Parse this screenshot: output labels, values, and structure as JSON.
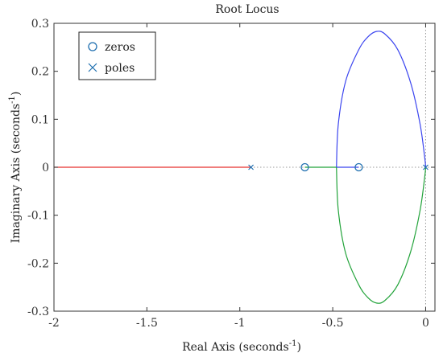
{
  "chart_data": {
    "type": "line",
    "title": "Root Locus",
    "xlabel": "Real Axis (seconds",
    "ylabel": "Imaginary Axis (seconds",
    "axis_unit_exponent": "-1",
    "xlim": [
      -2,
      0.05
    ],
    "ylim": [
      -0.3,
      0.3
    ],
    "x_ticks": [
      -2,
      -1.5,
      -1,
      -0.5,
      0
    ],
    "x_tick_labels": [
      "-2",
      "-1.5",
      "-1",
      "-0.5",
      "0"
    ],
    "y_ticks": [
      0.3,
      0.2,
      0.1,
      0,
      -0.1,
      -0.2,
      -0.3
    ],
    "y_tick_labels": [
      "0.3",
      "0.2",
      "0.1",
      "0",
      "-0.1",
      "-0.2",
      "-0.3"
    ],
    "grid": false,
    "legend_placement": "top-left",
    "legend": [
      {
        "label": "zeros",
        "marker": "o"
      },
      {
        "label": "poles",
        "marker": "x"
      }
    ],
    "colors": {
      "branch_red": "#e8312f",
      "branch_blue": "#3b45ef",
      "branch_green": "#22a33a",
      "marker": "#1f6fb0",
      "guide": "#999999"
    },
    "poles": [
      {
        "re": -0.94,
        "im": 0
      },
      {
        "re": 0,
        "im": 0
      }
    ],
    "zeros": [
      {
        "re": -0.65,
        "im": 0
      },
      {
        "re": -0.36,
        "im": 0
      }
    ],
    "series": [
      {
        "color": "#e8312f",
        "x": [
          -0.94,
          -2.0
        ],
        "y": [
          0,
          0
        ]
      },
      {
        "color": "#22a33a",
        "x": [
          -0.65,
          -0.48
        ],
        "y": [
          0,
          0
        ]
      },
      {
        "color": "#3b45ef",
        "x": [
          -0.36,
          -0.48
        ],
        "y": [
          0,
          0
        ]
      },
      {
        "color": "#3b45ef",
        "x": [
          -0.48,
          -0.47,
          -0.43,
          -0.36,
          -0.31,
          -0.265,
          -0.22,
          -0.15,
          -0.08,
          -0.03,
          -0.005,
          0.0
        ],
        "y": [
          0,
          0.09,
          0.18,
          0.245,
          0.272,
          0.283,
          0.278,
          0.245,
          0.175,
          0.09,
          0.02,
          0
        ]
      },
      {
        "color": "#22a33a",
        "x": [
          -0.48,
          -0.47,
          -0.43,
          -0.36,
          -0.31,
          -0.265,
          -0.22,
          -0.15,
          -0.08,
          -0.03,
          -0.005,
          0.0
        ],
        "y": [
          0,
          -0.09,
          -0.18,
          -0.245,
          -0.272,
          -0.283,
          -0.278,
          -0.245,
          -0.175,
          -0.09,
          -0.02,
          0
        ]
      }
    ]
  }
}
